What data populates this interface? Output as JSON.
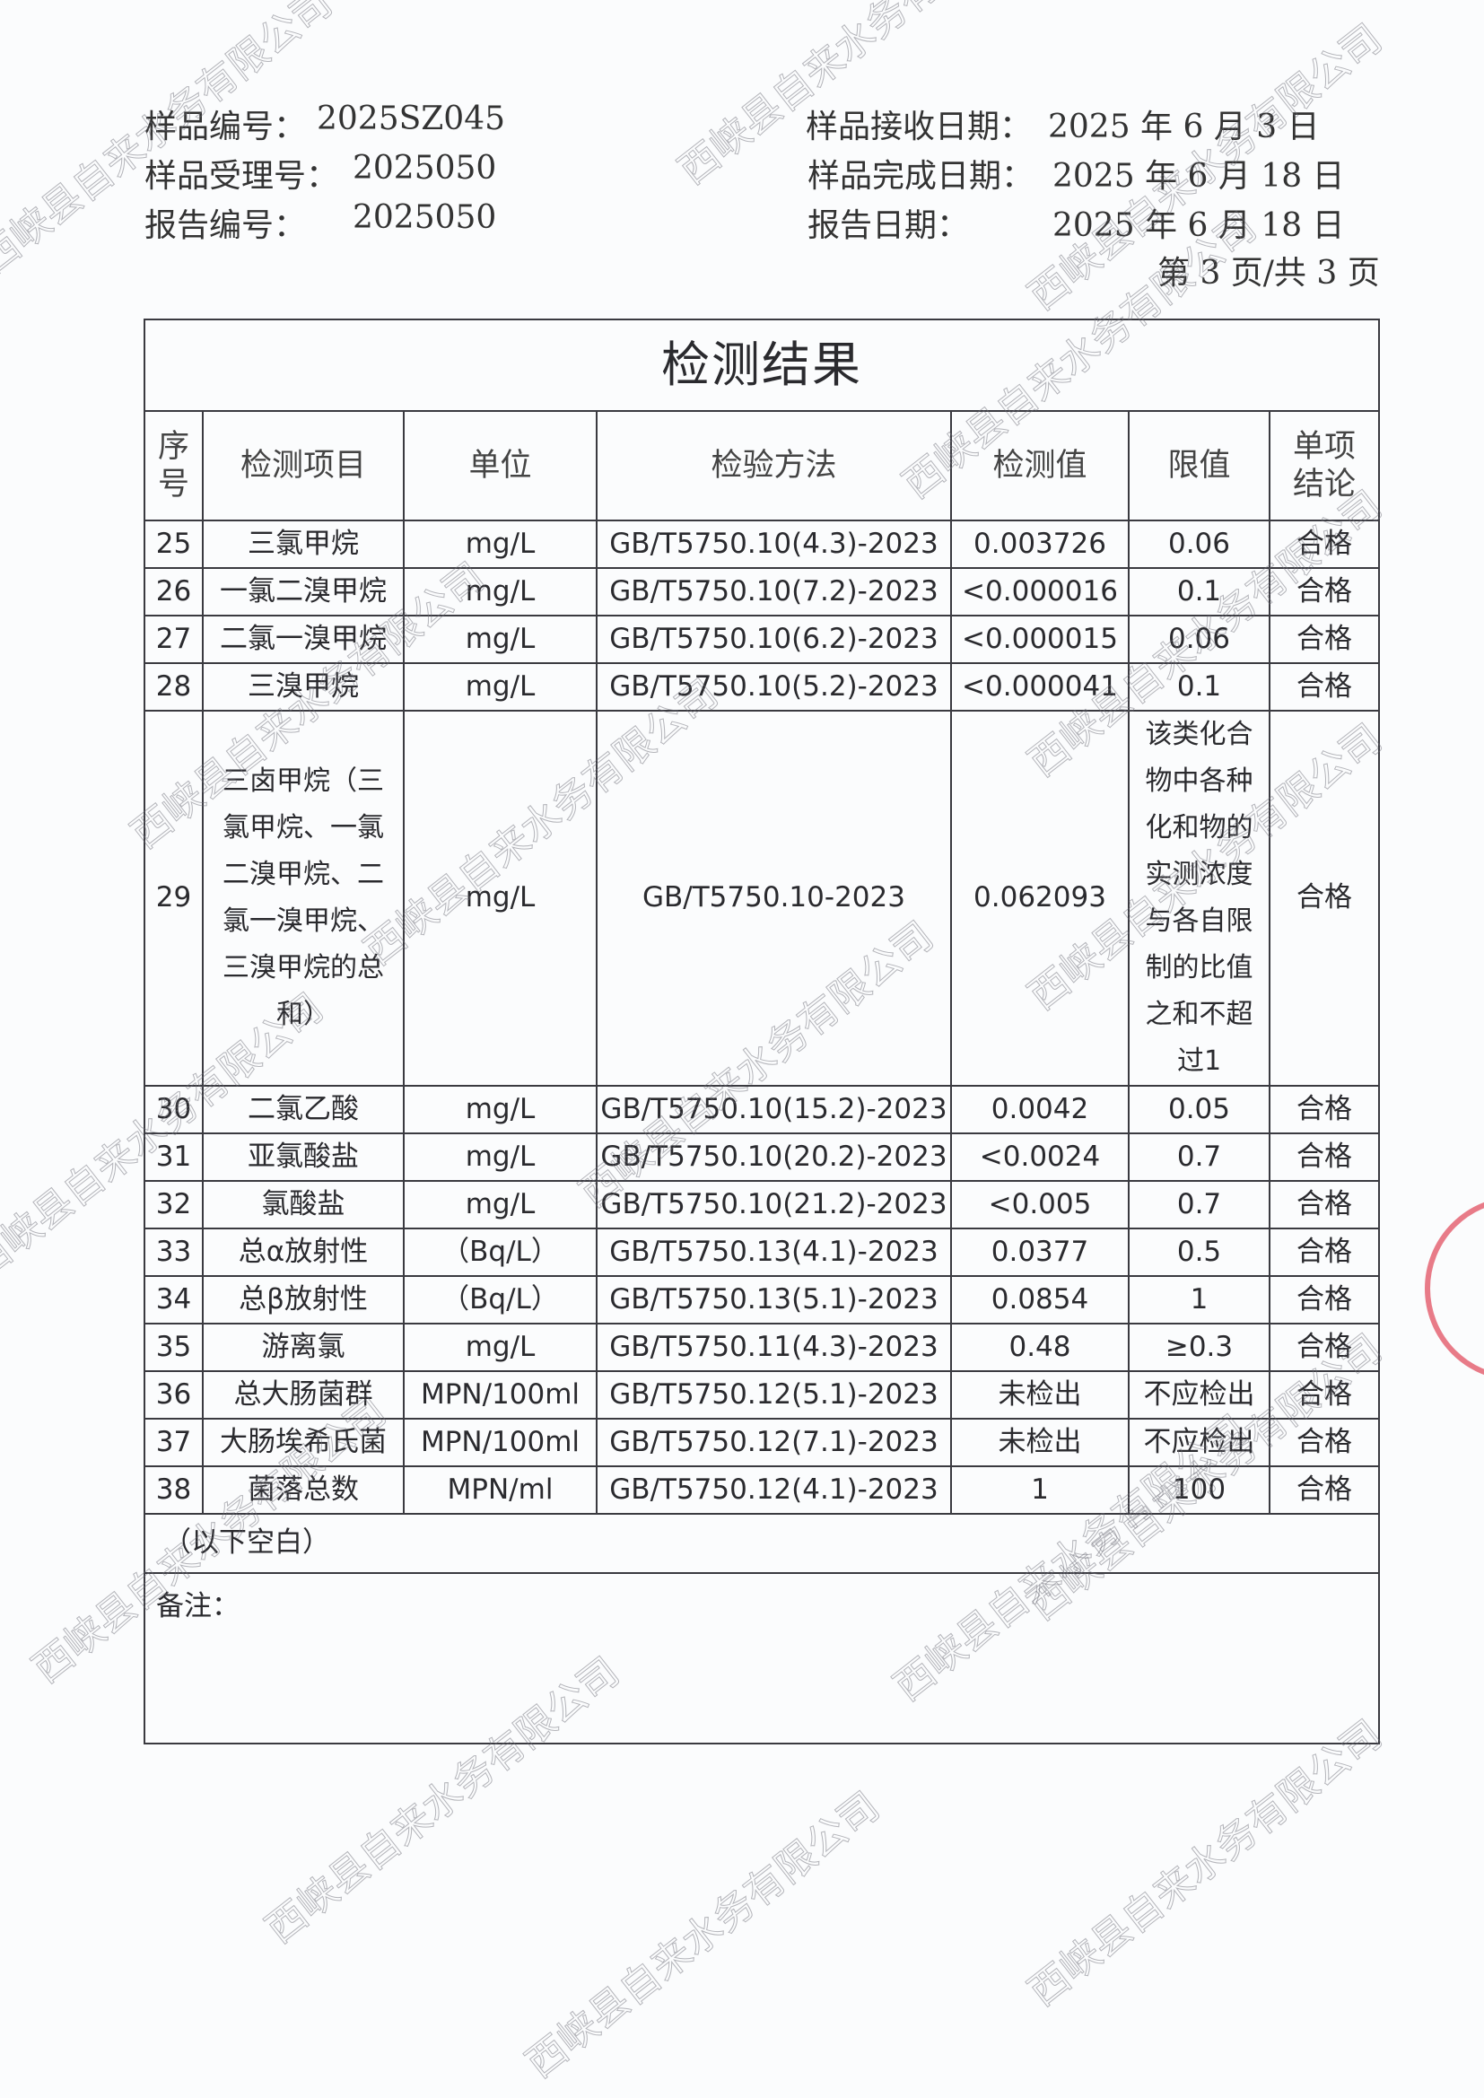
{
  "header": {
    "sample_no_label": "样品编号：",
    "sample_no": "2025SZ045",
    "accept_no_label": "样品受理号：",
    "accept_no": "2025050",
    "report_no_label": "报告编号：",
    "report_no": "2025050",
    "received_label": "样品接收日期：",
    "received": "2025 年 6 月 3 日",
    "completed_label": "样品完成日期：",
    "completed": "2025 年 6 月 18 日",
    "report_date_label": "报告日期：",
    "report_date": "2025 年 6 月 18 日",
    "page": "第 3 页/共 3 页"
  },
  "table": {
    "title": "检测结果",
    "columns": [
      "序号",
      "检测项目",
      "单位",
      "检验方法",
      "检测值",
      "限值",
      "单项结论"
    ],
    "rows": [
      {
        "no": "25",
        "item": "三氯甲烷",
        "unit": "mg/L",
        "method": "GB/T5750.10(4.3)-2023",
        "value": "0.003726",
        "limit": "0.06",
        "result": "合格"
      },
      {
        "no": "26",
        "item": "一氯二溴甲烷",
        "unit": "mg/L",
        "method": "GB/T5750.10(7.2)-2023",
        "value": "<0.000016",
        "limit": "0.1",
        "result": "合格"
      },
      {
        "no": "27",
        "item": "二氯一溴甲烷",
        "unit": "mg/L",
        "method": "GB/T5750.10(6.2)-2023",
        "value": "<0.000015",
        "limit": "0.06",
        "result": "合格"
      },
      {
        "no": "28",
        "item": "三溴甲烷",
        "unit": "mg/L",
        "method": "GB/T5750.10(5.2)-2023",
        "value": "<0.000041",
        "limit": "0.1",
        "result": "合格"
      },
      {
        "no": "29",
        "item": "三卤甲烷（三氯甲烷、一氯二溴甲烷、二氯一溴甲烷、三溴甲烷的总和）",
        "unit": "mg/L",
        "method": "GB/T5750.10-2023",
        "value": "0.062093",
        "limit": "该类化合物中各种化和物的实测浓度与各自限制的比值之和不超过1",
        "result": "合格"
      },
      {
        "no": "30",
        "item": "二氯乙酸",
        "unit": "mg/L",
        "method": "GB/T5750.10(15.2)-2023",
        "value": "0.0042",
        "limit": "0.05",
        "result": "合格"
      },
      {
        "no": "31",
        "item": "亚氯酸盐",
        "unit": "mg/L",
        "method": "GB/T5750.10(20.2)-2023",
        "value": "<0.0024",
        "limit": "0.7",
        "result": "合格"
      },
      {
        "no": "32",
        "item": "氯酸盐",
        "unit": "mg/L",
        "method": "GB/T5750.10(21.2)-2023",
        "value": "<0.005",
        "limit": "0.7",
        "result": "合格"
      },
      {
        "no": "33",
        "item": "总α放射性",
        "unit": "（Bq/L）",
        "method": "GB/T5750.13(4.1)-2023",
        "value": "0.0377",
        "limit": "0.5",
        "result": "合格"
      },
      {
        "no": "34",
        "item": "总β放射性",
        "unit": "（Bq/L）",
        "method": "GB/T5750.13(5.1)-2023",
        "value": "0.0854",
        "limit": "1",
        "result": "合格"
      },
      {
        "no": "35",
        "item": "游离氯",
        "unit": "mg/L",
        "method": "GB/T5750.11(4.3)-2023",
        "value": "0.48",
        "limit": "≥0.3",
        "result": "合格"
      },
      {
        "no": "36",
        "item": "总大肠菌群",
        "unit": "MPN/100ml",
        "method": "GB/T5750.12(5.1)-2023",
        "value": "未检出",
        "limit": "不应检出",
        "result": "合格"
      },
      {
        "no": "37",
        "item": "大肠埃希氏菌",
        "unit": "MPN/100ml",
        "method": "GB/T5750.12(7.1)-2023",
        "value": "未检出",
        "limit": "不应检出",
        "result": "合格"
      },
      {
        "no": "38",
        "item": "菌落总数",
        "unit": "MPN/ml",
        "method": "GB/T5750.12(4.1)-2023",
        "value": "1",
        "limit": "100",
        "result": "合格"
      }
    ],
    "blank_note": "（以下空白）",
    "remarks_label": "备注："
  },
  "watermark": "西峡县自来水务有限公司",
  "colors": {
    "stamp": "#e35a6a",
    "watermark": "#8a8a94"
  }
}
